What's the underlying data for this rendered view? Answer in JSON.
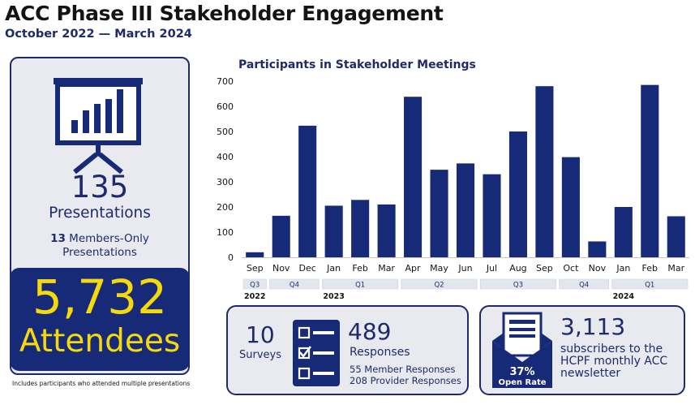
{
  "header": {
    "title": "ACC Phase III Stakeholder Engagement",
    "subtitle": "October 2022 — March 2024"
  },
  "presentations": {
    "icon": "presentation-chart-icon",
    "count": "135",
    "label": "Presentations",
    "members_only_count": "13",
    "members_only_label": "Members-Only",
    "members_only_label2": "Presentations"
  },
  "attendees": {
    "count": "5,732",
    "label": "Attendees",
    "footnote": "Includes participants who attended multiple presentations"
  },
  "chart_data": {
    "type": "bar",
    "title": "Participants in Stakeholder Meetings",
    "categories": [
      "Sep",
      "Nov",
      "Dec",
      "Jan",
      "Feb",
      "Mar",
      "Apr",
      "May",
      "Jun",
      "Jul",
      "Aug",
      "Sep",
      "Oct",
      "Nov",
      "Jan",
      "Feb",
      "Mar"
    ],
    "values": [
      20,
      165,
      523,
      205,
      228,
      210,
      638,
      348,
      373,
      330,
      500,
      680,
      398,
      63,
      200,
      685,
      163
    ],
    "ylim": [
      0,
      700
    ],
    "yticks": [
      0,
      100,
      200,
      300,
      400,
      500,
      600,
      700
    ],
    "grid": false,
    "bar_color": "#172a78",
    "quarters": [
      {
        "label": "Q3",
        "start": 0,
        "end": 0
      },
      {
        "label": "Q4",
        "start": 1,
        "end": 2
      },
      {
        "label": "Q1",
        "start": 3,
        "end": 5
      },
      {
        "label": "Q2",
        "start": 6,
        "end": 8
      },
      {
        "label": "Q3",
        "start": 9,
        "end": 11
      },
      {
        "label": "Q4",
        "start": 12,
        "end": 13
      },
      {
        "label": "Q1",
        "start": 14,
        "end": 16
      }
    ],
    "years": [
      {
        "label": "2022",
        "index": 0
      },
      {
        "label": "2023",
        "index": 3
      },
      {
        "label": "2024",
        "index": 14
      }
    ]
  },
  "surveys": {
    "count": "10",
    "label": "Surveys",
    "icon": "checklist-icon",
    "responses_count": "489",
    "responses_label": "Responses",
    "member_responses": "55 Member Responses",
    "provider_responses": "208 Provider Responses"
  },
  "newsletter": {
    "icon": "envelope-newsletter-icon",
    "open_rate": "37%",
    "open_rate_label": "Open Rate",
    "subscribers_count": "3,113",
    "subscribers_text": "subscribers to the HCPF monthly ACC newsletter"
  },
  "colors": {
    "navy": "#172a78",
    "gold": "#f5d90a",
    "card_bg": "#e8eaf0"
  }
}
